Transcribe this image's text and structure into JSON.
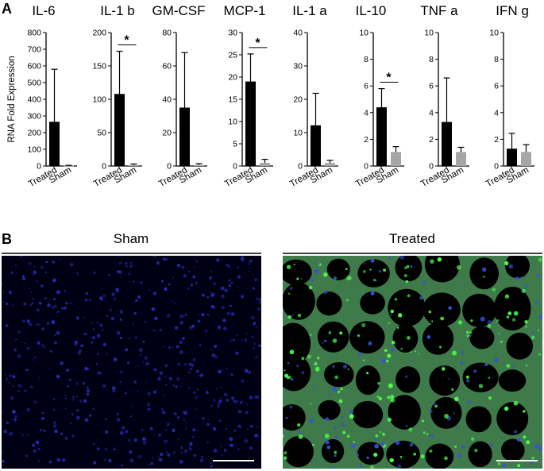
{
  "panels": {
    "a": "A",
    "b": "B"
  },
  "chart_data": [
    {
      "type": "bar",
      "title": "IL-6",
      "ylabel": "RNA Fold Expression",
      "ylim": [
        0,
        800
      ],
      "yticks": [
        0,
        100,
        200,
        300,
        400,
        500,
        600,
        700,
        800
      ],
      "categories": [
        "Treated",
        "Sham"
      ],
      "values": [
        265,
        2
      ],
      "errors": [
        315,
        2
      ],
      "colors": [
        "#000000",
        "#a6a6a6"
      ],
      "significance": []
    },
    {
      "type": "bar",
      "title": "IL-1 b",
      "ylabel": "",
      "ylim": [
        0,
        200
      ],
      "yticks": [
        0,
        50,
        100,
        150,
        200
      ],
      "categories": [
        "Treated",
        "Sham"
      ],
      "values": [
        108,
        1.5
      ],
      "errors": [
        64,
        1.5
      ],
      "colors": [
        "#000000",
        "#a6a6a6"
      ],
      "significance": [
        "*"
      ]
    },
    {
      "type": "bar",
      "title": "GM-CSF",
      "ylabel": "",
      "ylim": [
        0,
        80
      ],
      "yticks": [
        0,
        20,
        40,
        60,
        80
      ],
      "categories": [
        "Treated",
        "Sham"
      ],
      "values": [
        35,
        0.6
      ],
      "errors": [
        33,
        0.8
      ],
      "colors": [
        "#000000",
        "#a6a6a6"
      ],
      "significance": []
    },
    {
      "type": "bar",
      "title": "MCP-1",
      "ylabel": "",
      "ylim": [
        0,
        30
      ],
      "yticks": [
        0,
        5,
        10,
        15,
        20,
        25,
        30
      ],
      "categories": [
        "Treated",
        "Sham"
      ],
      "values": [
        19,
        0.7
      ],
      "errors": [
        6.2,
        0.8
      ],
      "colors": [
        "#000000",
        "#a6a6a6"
      ],
      "significance": [
        "*"
      ]
    },
    {
      "type": "bar",
      "title": "IL-1 a",
      "ylabel": "",
      "ylim": [
        0,
        40
      ],
      "yticks": [
        0,
        10,
        20,
        30,
        40
      ],
      "categories": [
        "Treated",
        "Sham"
      ],
      "values": [
        12.2,
        0.9
      ],
      "errors": [
        9.6,
        0.8
      ],
      "colors": [
        "#000000",
        "#a6a6a6"
      ],
      "significance": []
    },
    {
      "type": "bar",
      "title": "IL-10",
      "ylabel": "",
      "ylim": [
        0,
        10
      ],
      "yticks": [
        0,
        2,
        4,
        6,
        8,
        10
      ],
      "categories": [
        "Treated",
        "Sham"
      ],
      "values": [
        4.4,
        1.05
      ],
      "errors": [
        1.4,
        0.4
      ],
      "colors": [
        "#000000",
        "#a6a6a6"
      ],
      "significance": [
        "*"
      ]
    },
    {
      "type": "bar",
      "title": "TNF a",
      "ylabel": "",
      "ylim": [
        0,
        10
      ],
      "yticks": [
        0,
        2,
        4,
        6,
        8,
        10
      ],
      "categories": [
        "Treated",
        "Sham"
      ],
      "values": [
        3.3,
        1.05
      ],
      "errors": [
        3.3,
        0.35
      ],
      "colors": [
        "#000000",
        "#a6a6a6"
      ],
      "significance": []
    },
    {
      "type": "bar",
      "title": "IFN g",
      "ylabel": "",
      "ylim": [
        0,
        10
      ],
      "yticks": [
        0,
        2,
        4,
        6,
        8,
        10
      ],
      "categories": [
        "Treated",
        "Sham"
      ],
      "values": [
        1.3,
        1.05
      ],
      "errors": [
        1.15,
        0.55
      ],
      "colors": [
        "#000000",
        "#a6a6a6"
      ],
      "significance": []
    }
  ],
  "images": [
    {
      "title": "Sham",
      "background": "#000014",
      "stain": "#2a32c8"
    },
    {
      "title": "Treated",
      "background": "#000000",
      "tissue": "#3e7a4a",
      "stain": "#4cff4c",
      "nuclei": "#3a4fd8"
    }
  ]
}
